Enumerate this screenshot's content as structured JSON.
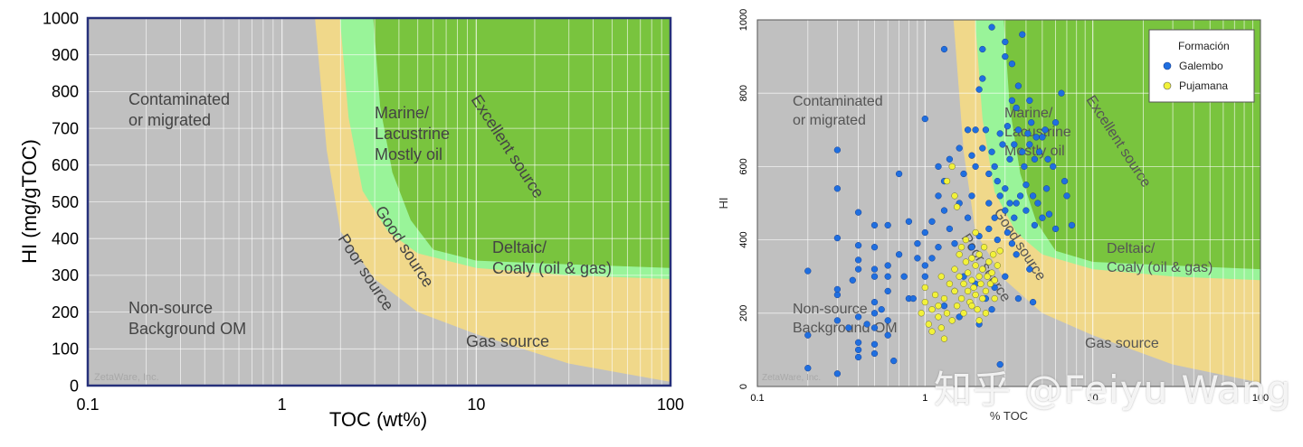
{
  "chart_data": [
    {
      "type": "scatter",
      "title": "",
      "xlabel": "TOC (wt%)",
      "ylabel": "HI (mg/gTOC)",
      "x_scale": "log",
      "xlim": [
        0.1,
        100
      ],
      "ylim": [
        0,
        1000
      ],
      "x_ticks": [
        "0.1",
        "1",
        "10",
        "100"
      ],
      "y_ticks": [
        "0",
        "100",
        "200",
        "300",
        "400",
        "500",
        "600",
        "700",
        "800",
        "900",
        "1000"
      ],
      "grid": true,
      "region_labels": [
        {
          "lines": [
            "Contaminated",
            "or migrated"
          ]
        },
        {
          "lines": [
            "Marine/",
            "Lacustrine",
            "Mostly oil"
          ]
        },
        {
          "lines": [
            "Excellent source"
          ]
        },
        {
          "lines": [
            "Good source"
          ]
        },
        {
          "lines": [
            "Poor source"
          ]
        },
        {
          "lines": [
            "Deltaic/",
            "Coaly (oil & gas)"
          ]
        },
        {
          "lines": [
            "Non-source",
            "Background OM"
          ]
        },
        {
          "lines": [
            "Gas source"
          ]
        }
      ],
      "credit": "ZetaWare, Inc.",
      "series": []
    },
    {
      "type": "scatter",
      "title": "",
      "xlabel": "% TOC",
      "ylabel": "HI",
      "x_scale": "log",
      "xlim": [
        0.1,
        100
      ],
      "ylim": [
        0,
        1000
      ],
      "x_ticks": [
        "0.1",
        "1",
        "10",
        "100"
      ],
      "y_ticks": [
        "0",
        "200",
        "400",
        "600",
        "800",
        "1000"
      ],
      "grid": true,
      "legend_title": "Formación",
      "legend_position": "top-right",
      "region_labels": [
        {
          "lines": [
            "Contaminated",
            "or migrated"
          ]
        },
        {
          "lines": [
            "Marine/",
            "Lacustrine",
            "Mostly oil"
          ]
        },
        {
          "lines": [
            "Excellent source"
          ]
        },
        {
          "lines": [
            "Good source"
          ]
        },
        {
          "lines": [
            "Poor source"
          ]
        },
        {
          "lines": [
            "Deltaic/",
            "Coaly (oil & gas)"
          ]
        },
        {
          "lines": [
            "Non-source",
            "Background OM"
          ]
        },
        {
          "lines": [
            "Gas source"
          ]
        }
      ],
      "credit": "ZetaWare, Inc.",
      "series": [
        {
          "name": "Galembo",
          "color": "#1f6fe0",
          "marker": "circle",
          "points": [
            [
              0.2,
              50
            ],
            [
              0.2,
              140
            ],
            [
              0.2,
              315
            ],
            [
              0.3,
              35
            ],
            [
              0.3,
              180
            ],
            [
              0.3,
              250
            ],
            [
              0.3,
              265
            ],
            [
              0.3,
              405
            ],
            [
              0.3,
              540
            ],
            [
              0.3,
              645
            ],
            [
              0.35,
              160
            ],
            [
              0.37,
              290
            ],
            [
              0.4,
              80
            ],
            [
              0.4,
              100
            ],
            [
              0.4,
              120
            ],
            [
              0.4,
              190
            ],
            [
              0.4,
              320
            ],
            [
              0.4,
              345
            ],
            [
              0.4,
              385
            ],
            [
              0.4,
              475
            ],
            [
              0.45,
              170
            ],
            [
              0.5,
              90
            ],
            [
              0.5,
              115
            ],
            [
              0.5,
              160
            ],
            [
              0.5,
              200
            ],
            [
              0.5,
              230
            ],
            [
              0.5,
              300
            ],
            [
              0.5,
              320
            ],
            [
              0.5,
              380
            ],
            [
              0.5,
              440
            ],
            [
              0.55,
              210
            ],
            [
              0.6,
              140
            ],
            [
              0.6,
              180
            ],
            [
              0.6,
              260
            ],
            [
              0.6,
              300
            ],
            [
              0.6,
              330
            ],
            [
              0.6,
              440
            ],
            [
              0.65,
              70
            ],
            [
              0.7,
              580
            ],
            [
              0.7,
              360
            ],
            [
              0.75,
              300
            ],
            [
              0.8,
              450
            ],
            [
              0.8,
              240
            ],
            [
              0.85,
              240
            ],
            [
              0.9,
              350
            ],
            [
              0.9,
              390
            ],
            [
              1.0,
              300
            ],
            [
              1.0,
              330
            ],
            [
              1.0,
              420
            ],
            [
              1.0,
              730
            ],
            [
              1.1,
              350
            ],
            [
              1.1,
              450
            ],
            [
              1.2,
              380
            ],
            [
              1.2,
              520
            ],
            [
              1.2,
              600
            ],
            [
              1.3,
              480
            ],
            [
              1.3,
              560
            ],
            [
              1.3,
              920
            ],
            [
              1.4,
              430
            ],
            [
              1.4,
              620
            ],
            [
              1.5,
              390
            ],
            [
              1.6,
              500
            ],
            [
              1.7,
              580
            ],
            [
              1.8,
              460
            ],
            [
              1.9,
              520
            ],
            [
              1.9,
              630
            ],
            [
              2.0,
              700
            ],
            [
              2.1,
              810
            ],
            [
              2.2,
              920
            ],
            [
              2.4,
              580
            ],
            [
              2.5,
              640
            ],
            [
              2.5,
              980
            ],
            [
              2.8,
              690
            ],
            [
              3.0,
              480
            ],
            [
              3.0,
              900
            ],
            [
              3.3,
              880
            ],
            [
              3.5,
              760
            ],
            [
              3.5,
              500
            ],
            [
              4.0,
              550
            ],
            [
              4.5,
              440
            ],
            [
              4.5,
              620
            ],
            [
              5.0,
              680
            ],
            [
              5.5,
              470
            ],
            [
              6.0,
              430
            ],
            [
              6.0,
              720
            ],
            [
              6.5,
              800
            ],
            [
              7.0,
              520
            ],
            [
              7.5,
              440
            ],
            [
              2.0,
              600
            ],
            [
              2.2,
              650
            ],
            [
              2.3,
              700
            ],
            [
              2.6,
              600
            ],
            [
              2.7,
              560
            ],
            [
              2.9,
              660
            ],
            [
              3.1,
              710
            ],
            [
              3.2,
              620
            ],
            [
              3.4,
              660
            ],
            [
              3.6,
              700
            ],
            [
              3.8,
              640
            ],
            [
              3.9,
              600
            ],
            [
              4.1,
              690
            ],
            [
              4.2,
              660
            ],
            [
              4.3,
              720
            ],
            [
              4.6,
              680
            ],
            [
              4.8,
              640
            ],
            [
              5.2,
              700
            ],
            [
              5.4,
              620
            ],
            [
              2.4,
              500
            ],
            [
              2.6,
              460
            ],
            [
              2.8,
              520
            ],
            [
              3.0,
              540
            ],
            [
              3.2,
              500
            ],
            [
              3.4,
              460
            ],
            [
              3.7,
              520
            ],
            [
              4.0,
              480
            ],
            [
              4.4,
              520
            ],
            [
              4.7,
              500
            ],
            [
              5.0,
              460
            ],
            [
              5.3,
              540
            ],
            [
              1.9,
              380
            ],
            [
              2.1,
              410
            ],
            [
              2.4,
              430
            ],
            [
              2.7,
              400
            ],
            [
              3.1,
              420
            ],
            [
              3.3,
              390
            ],
            [
              3.5,
              360
            ],
            [
              4.2,
              320
            ],
            [
              1.5,
              260
            ],
            [
              1.7,
              300
            ],
            [
              2.0,
              280
            ],
            [
              2.3,
              240
            ],
            [
              2.6,
              270
            ],
            [
              3.0,
              300
            ],
            [
              3.6,
              240
            ],
            [
              4.4,
              230
            ],
            [
              1.3,
              220
            ],
            [
              1.6,
              190
            ],
            [
              2.1,
              170
            ],
            [
              2.5,
              210
            ],
            [
              2.8,
              60
            ],
            [
              3.0,
              940
            ],
            [
              3.8,
              960
            ],
            [
              2.2,
              840
            ],
            [
              1.8,
              700
            ],
            [
              1.6,
              650
            ],
            [
              3.3,
              780
            ],
            [
              3.6,
              820
            ],
            [
              4.2,
              780
            ],
            [
              5.8,
              600
            ],
            [
              6.8,
              560
            ]
          ]
        },
        {
          "name": "Pujamana",
          "color": "#f2f23a",
          "marker": "circle",
          "points": [
            [
              0.95,
              200
            ],
            [
              1.0,
              230
            ],
            [
              1.0,
              270
            ],
            [
              1.05,
              170
            ],
            [
              1.1,
              210
            ],
            [
              1.1,
              150
            ],
            [
              1.15,
              250
            ],
            [
              1.2,
              190
            ],
            [
              1.2,
              220
            ],
            [
              1.25,
              160
            ],
            [
              1.3,
              130
            ],
            [
              1.3,
              240
            ],
            [
              1.35,
              200
            ],
            [
              1.4,
              280
            ],
            [
              1.45,
              180
            ],
            [
              1.5,
              260
            ],
            [
              1.5,
              320
            ],
            [
              1.55,
              220
            ],
            [
              1.6,
              300
            ],
            [
              1.6,
              360
            ],
            [
              1.65,
              240
            ],
            [
              1.7,
              200
            ],
            [
              1.7,
              280
            ],
            [
              1.75,
              340
            ],
            [
              1.8,
              260
            ],
            [
              1.8,
              310
            ],
            [
              1.85,
              230
            ],
            [
              1.9,
              290
            ],
            [
              1.9,
              350
            ],
            [
              1.95,
              270
            ],
            [
              2.0,
              250
            ],
            [
              2.0,
              330
            ],
            [
              2.05,
              210
            ],
            [
              2.1,
              300
            ],
            [
              2.1,
              360
            ],
            [
              2.15,
              280
            ],
            [
              2.2,
              240
            ],
            [
              2.2,
              320
            ],
            [
              2.25,
              380
            ],
            [
              2.3,
              260
            ],
            [
              2.35,
              300
            ],
            [
              2.4,
              340
            ],
            [
              2.45,
              280
            ],
            [
              2.5,
              310
            ],
            [
              2.55,
              360
            ],
            [
              2.6,
              290
            ],
            [
              2.7,
              330
            ],
            [
              2.8,
              370
            ],
            [
              1.55,
              490
            ],
            [
              1.45,
              600
            ],
            [
              1.35,
              560
            ],
            [
              1.5,
              520
            ],
            [
              1.75,
              400
            ],
            [
              2.0,
              420
            ],
            [
              1.25,
              300
            ],
            [
              1.9,
              220
            ],
            [
              2.1,
              180
            ],
            [
              2.3,
              200
            ],
            [
              1.65,
              380
            ],
            [
              2.6,
              240
            ]
          ]
        }
      ]
    }
  ],
  "watermark": "知乎 @Feiyu Wang"
}
